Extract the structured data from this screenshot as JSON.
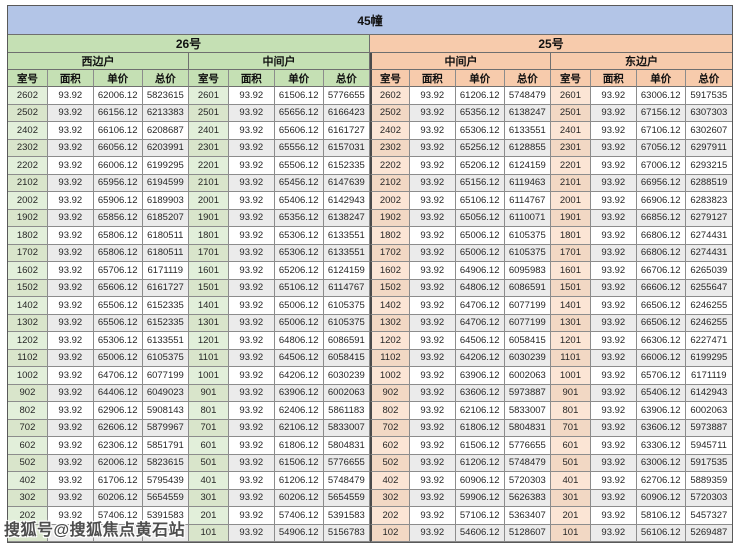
{
  "title": "45幢",
  "watermark": {
    "text": "搜狐号@搜狐焦点黄石站"
  },
  "colors": {
    "band_blue": "#b3c5e7",
    "green": "#c5e0b4",
    "orange": "#f7cbac",
    "room_green": "#e2efda",
    "room_peach": "#fbe5d5",
    "stripe": "#ebebeb"
  },
  "col_headers": [
    "室号",
    "面积",
    "单价",
    "总价"
  ],
  "sections": [
    {
      "name": "26号",
      "units": [
        {
          "name": "西边户",
          "rows": [
            [
              "2602",
              "93.92",
              "62006.12",
              "5823615"
            ],
            [
              "2502",
              "93.92",
              "66156.12",
              "6213383"
            ],
            [
              "2402",
              "93.92",
              "66106.12",
              "6208687"
            ],
            [
              "2302",
              "93.92",
              "66056.12",
              "6203991"
            ],
            [
              "2202",
              "93.92",
              "66006.12",
              "6199295"
            ],
            [
              "2102",
              "93.92",
              "65956.12",
              "6194599"
            ],
            [
              "2002",
              "93.92",
              "65906.12",
              "6189903"
            ],
            [
              "1902",
              "93.92",
              "65856.12",
              "6185207"
            ],
            [
              "1802",
              "93.92",
              "65806.12",
              "6180511"
            ],
            [
              "1702",
              "93.92",
              "65806.12",
              "6180511"
            ],
            [
              "1602",
              "93.92",
              "65706.12",
              "6171119"
            ],
            [
              "1502",
              "93.92",
              "65606.12",
              "6161727"
            ],
            [
              "1402",
              "93.92",
              "65506.12",
              "6152335"
            ],
            [
              "1302",
              "93.92",
              "65506.12",
              "6152335"
            ],
            [
              "1202",
              "93.92",
              "65306.12",
              "6133551"
            ],
            [
              "1102",
              "93.92",
              "65006.12",
              "6105375"
            ],
            [
              "1002",
              "93.92",
              "64706.12",
              "6077199"
            ],
            [
              "902",
              "93.92",
              "64406.12",
              "6049023"
            ],
            [
              "802",
              "93.92",
              "62906.12",
              "5908143"
            ],
            [
              "702",
              "93.92",
              "62606.12",
              "5879967"
            ],
            [
              "602",
              "93.92",
              "62306.12",
              "5851791"
            ],
            [
              "502",
              "93.92",
              "62006.12",
              "5823615"
            ],
            [
              "402",
              "93.92",
              "61706.12",
              "5795439"
            ],
            [
              "302",
              "93.92",
              "60206.12",
              "5654559"
            ],
            [
              "202",
              "93.92",
              "57406.12",
              "5391583"
            ],
            [
              "",
              "",
              "",
              "743"
            ]
          ]
        },
        {
          "name": "中间户",
          "rows": [
            [
              "2601",
              "93.92",
              "61506.12",
              "5776655"
            ],
            [
              "2501",
              "93.92",
              "65656.12",
              "6166423"
            ],
            [
              "2401",
              "93.92",
              "65606.12",
              "6161727"
            ],
            [
              "2301",
              "93.92",
              "65556.12",
              "6157031"
            ],
            [
              "2201",
              "93.92",
              "65506.12",
              "6152335"
            ],
            [
              "2101",
              "93.92",
              "65456.12",
              "6147639"
            ],
            [
              "2001",
              "93.92",
              "65406.12",
              "6142943"
            ],
            [
              "1901",
              "93.92",
              "65356.12",
              "6138247"
            ],
            [
              "1801",
              "93.92",
              "65306.12",
              "6133551"
            ],
            [
              "1701",
              "93.92",
              "65306.12",
              "6133551"
            ],
            [
              "1601",
              "93.92",
              "65206.12",
              "6124159"
            ],
            [
              "1501",
              "93.92",
              "65106.12",
              "6114767"
            ],
            [
              "1401",
              "93.92",
              "65006.12",
              "6105375"
            ],
            [
              "1301",
              "93.92",
              "65006.12",
              "6105375"
            ],
            [
              "1201",
              "93.92",
              "64806.12",
              "6086591"
            ],
            [
              "1101",
              "93.92",
              "64506.12",
              "6058415"
            ],
            [
              "1001",
              "93.92",
              "64206.12",
              "6030239"
            ],
            [
              "901",
              "93.92",
              "63906.12",
              "6002063"
            ],
            [
              "801",
              "93.92",
              "62406.12",
              "5861183"
            ],
            [
              "701",
              "93.92",
              "62106.12",
              "5833007"
            ],
            [
              "601",
              "93.92",
              "61806.12",
              "5804831"
            ],
            [
              "501",
              "93.92",
              "61506.12",
              "5776655"
            ],
            [
              "401",
              "93.92",
              "61206.12",
              "5748479"
            ],
            [
              "301",
              "93.92",
              "60206.12",
              "5654559"
            ],
            [
              "201",
              "93.92",
              "57406.12",
              "5391583"
            ],
            [
              "101",
              "93.92",
              "54906.12",
              "5156783"
            ]
          ]
        }
      ]
    },
    {
      "name": "25号",
      "units": [
        {
          "name": "中间户",
          "rows": [
            [
              "2602",
              "93.92",
              "61206.12",
              "5748479"
            ],
            [
              "2502",
              "93.92",
              "65356.12",
              "6138247"
            ],
            [
              "2402",
              "93.92",
              "65306.12",
              "6133551"
            ],
            [
              "2302",
              "93.92",
              "65256.12",
              "6128855"
            ],
            [
              "2202",
              "93.92",
              "65206.12",
              "6124159"
            ],
            [
              "2102",
              "93.92",
              "65156.12",
              "6119463"
            ],
            [
              "2002",
              "93.92",
              "65106.12",
              "6114767"
            ],
            [
              "1902",
              "93.92",
              "65056.12",
              "6110071"
            ],
            [
              "1802",
              "93.92",
              "65006.12",
              "6105375"
            ],
            [
              "1702",
              "93.92",
              "65006.12",
              "6105375"
            ],
            [
              "1602",
              "93.92",
              "64906.12",
              "6095983"
            ],
            [
              "1502",
              "93.92",
              "64806.12",
              "6086591"
            ],
            [
              "1402",
              "93.92",
              "64706.12",
              "6077199"
            ],
            [
              "1302",
              "93.92",
              "64706.12",
              "6077199"
            ],
            [
              "1202",
              "93.92",
              "64506.12",
              "6058415"
            ],
            [
              "1102",
              "93.92",
              "64206.12",
              "6030239"
            ],
            [
              "1002",
              "93.92",
              "63906.12",
              "6002063"
            ],
            [
              "902",
              "93.92",
              "63606.12",
              "5973887"
            ],
            [
              "802",
              "93.92",
              "62106.12",
              "5833007"
            ],
            [
              "702",
              "93.92",
              "61806.12",
              "5804831"
            ],
            [
              "602",
              "93.92",
              "61506.12",
              "5776655"
            ],
            [
              "502",
              "93.92",
              "61206.12",
              "5748479"
            ],
            [
              "402",
              "93.92",
              "60906.12",
              "5720303"
            ],
            [
              "302",
              "93.92",
              "59906.12",
              "5626383"
            ],
            [
              "202",
              "93.92",
              "57106.12",
              "5363407"
            ],
            [
              "102",
              "93.92",
              "54606.12",
              "5128607"
            ]
          ]
        },
        {
          "name": "东边户",
          "rows": [
            [
              "2601",
              "93.92",
              "63006.12",
              "5917535"
            ],
            [
              "2501",
              "93.92",
              "67156.12",
              "6307303"
            ],
            [
              "2401",
              "93.92",
              "67106.12",
              "6302607"
            ],
            [
              "2301",
              "93.92",
              "67056.12",
              "6297911"
            ],
            [
              "2201",
              "93.92",
              "67006.12",
              "6293215"
            ],
            [
              "2101",
              "93.92",
              "66956.12",
              "6288519"
            ],
            [
              "2001",
              "93.92",
              "66906.12",
              "6283823"
            ],
            [
              "1901",
              "93.92",
              "66856.12",
              "6279127"
            ],
            [
              "1801",
              "93.92",
              "66806.12",
              "6274431"
            ],
            [
              "1701",
              "93.92",
              "66806.12",
              "6274431"
            ],
            [
              "1601",
              "93.92",
              "66706.12",
              "6265039"
            ],
            [
              "1501",
              "93.92",
              "66606.12",
              "6255647"
            ],
            [
              "1401",
              "93.92",
              "66506.12",
              "6246255"
            ],
            [
              "1301",
              "93.92",
              "66506.12",
              "6246255"
            ],
            [
              "1201",
              "93.92",
              "66306.12",
              "6227471"
            ],
            [
              "1101",
              "93.92",
              "66006.12",
              "6199295"
            ],
            [
              "1001",
              "93.92",
              "65706.12",
              "6171119"
            ],
            [
              "901",
              "93.92",
              "65406.12",
              "6142943"
            ],
            [
              "801",
              "93.92",
              "63906.12",
              "6002063"
            ],
            [
              "701",
              "93.92",
              "63606.12",
              "5973887"
            ],
            [
              "601",
              "93.92",
              "63306.12",
              "5945711"
            ],
            [
              "501",
              "93.92",
              "63006.12",
              "5917535"
            ],
            [
              "401",
              "93.92",
              "62706.12",
              "5889359"
            ],
            [
              "301",
              "93.92",
              "60906.12",
              "5720303"
            ],
            [
              "201",
              "93.92",
              "58106.12",
              "5457327"
            ],
            [
              "101",
              "93.92",
              "56106.12",
              "5269487"
            ]
          ]
        }
      ]
    }
  ]
}
